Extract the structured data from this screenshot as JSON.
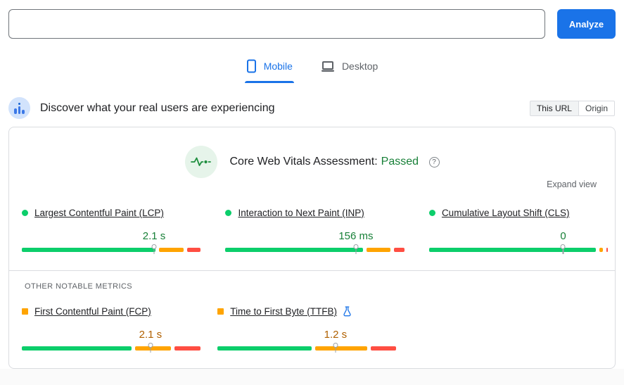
{
  "colors": {
    "accent_blue": "#1a73e8",
    "bar_good": "#0cce6b",
    "bar_needs_improvement": "#ffa400",
    "bar_poor": "#ff4e42",
    "value_good_text": "#188038",
    "value_average_text": "#b06000"
  },
  "url_bar": {
    "value": "",
    "placeholder": "",
    "analyze_label": "Analyze"
  },
  "tabs": [
    {
      "label": "Mobile",
      "active": true
    },
    {
      "label": "Desktop",
      "active": false
    }
  ],
  "field_data_header": {
    "title": "Discover what your real users are experiencing",
    "scope_toggle": [
      {
        "label": "This URL",
        "selected": true
      },
      {
        "label": "Origin",
        "selected": false
      }
    ]
  },
  "assessment": {
    "label": "Core Web Vitals Assessment:",
    "result": "Passed",
    "help_icon_glyph": "?",
    "expand_label": "Expand view"
  },
  "core_metrics": [
    {
      "id": "lcp",
      "label": "Largest Contentful Paint (LCP)",
      "value": "2.1 s",
      "status": "good",
      "experimental": false,
      "marker_pct": 74,
      "distribution_pct": {
        "good": 78,
        "needs_improvement": 14,
        "poor": 8
      }
    },
    {
      "id": "inp",
      "label": "Interaction to Next Paint (INP)",
      "value": "156 ms",
      "status": "good",
      "experimental": false,
      "marker_pct": 73,
      "distribution_pct": {
        "good": 80,
        "needs_improvement": 14,
        "poor": 6
      }
    },
    {
      "id": "cls",
      "label": "Cumulative Layout Shift (CLS)",
      "value": "0",
      "status": "good",
      "experimental": false,
      "marker_pct": 75,
      "distribution_pct": {
        "good": 97,
        "needs_improvement": 2,
        "poor": 1
      }
    }
  ],
  "other_metrics_section": {
    "heading": "OTHER NOTABLE METRICS"
  },
  "other_metrics": [
    {
      "id": "fcp",
      "label": "First Contentful Paint (FCP)",
      "value": "2.1 s",
      "status": "average",
      "experimental": false,
      "marker_pct": 72,
      "distribution_pct": {
        "good": 64,
        "needs_improvement": 21,
        "poor": 15
      }
    },
    {
      "id": "ttfb",
      "label": "Time to First Byte (TTFB)",
      "value": "1.2 s",
      "status": "average",
      "experimental": true,
      "marker_pct": 66,
      "distribution_pct": {
        "good": 55,
        "needs_improvement": 30,
        "poor": 15
      }
    }
  ]
}
